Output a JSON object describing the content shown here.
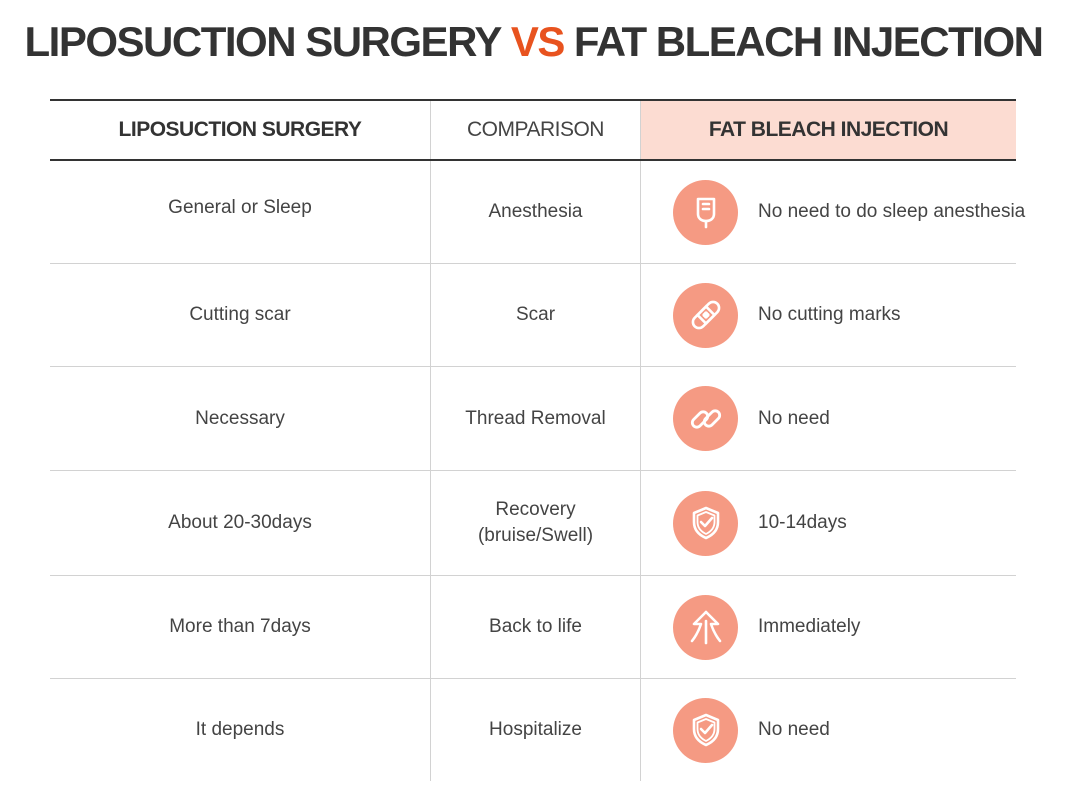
{
  "title": {
    "left": "LIPOSUCTION SURGERY",
    "vs": "VS",
    "right": "FAT BLEACH INJECTION"
  },
  "header": {
    "col1": "LIPOSUCTION SURGERY",
    "col2": "COMPARISON",
    "col3": "FAT BLEACH INJECTION"
  },
  "colors": {
    "accent": "#e8531f",
    "icon_bg": "#f59a83",
    "header_highlight": "#fcdcd2"
  },
  "rows": [
    {
      "lipo": "General or Sleep",
      "comparison": [
        "Anesthesia"
      ],
      "fat": "No need to do sleep anesthesia",
      "icon": "iv-bag-icon"
    },
    {
      "lipo": "Cutting scar",
      "comparison": [
        "Scar"
      ],
      "fat": "No cutting marks",
      "icon": "bandage-icon"
    },
    {
      "lipo": "Necessary",
      "comparison": [
        "Thread Removal"
      ],
      "fat": "No need",
      "icon": "chain-link-icon"
    },
    {
      "lipo": "About 20-30days",
      "comparison": [
        "Recovery",
        "(bruise/Swell)"
      ],
      "fat": "10-14days",
      "icon": "shield-check-icon"
    },
    {
      "lipo": "More than 7days",
      "comparison": [
        "Back to life"
      ],
      "fat": "Immediately",
      "icon": "up-arrow-icon"
    },
    {
      "lipo": "It depends",
      "comparison": [
        "Hospitalize"
      ],
      "fat": "No need",
      "icon": "shield-check-icon"
    }
  ]
}
